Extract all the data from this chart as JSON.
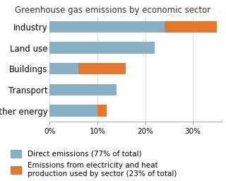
{
  "title": "Greenhouse gas emissions by economic sector",
  "categories": [
    "Industry",
    "Land use",
    "Buildings",
    "Transport",
    "Other energy"
  ],
  "direct_emissions": [
    24,
    22,
    6,
    14,
    10
  ],
  "electricity_emissions": [
    11,
    0,
    10,
    0,
    2
  ],
  "color_direct": "#8aafc4",
  "color_electricity": "#e07830",
  "legend_direct": "Direct emissions (77% of total)",
  "legend_electricity": "Emissions from electricity and heat\nproduction used by sector (23% of total)",
  "xlabel_ticks": [
    0,
    10,
    20,
    30
  ],
  "xlabel_labels": [
    "0%",
    "10%",
    "20%",
    "30%"
  ],
  "xlim": [
    0,
    36
  ],
  "background_color": "#ffffff",
  "title_fontsize": 8.5,
  "label_fontsize": 8.5,
  "tick_fontsize": 7.5,
  "legend_fontsize": 7.5
}
